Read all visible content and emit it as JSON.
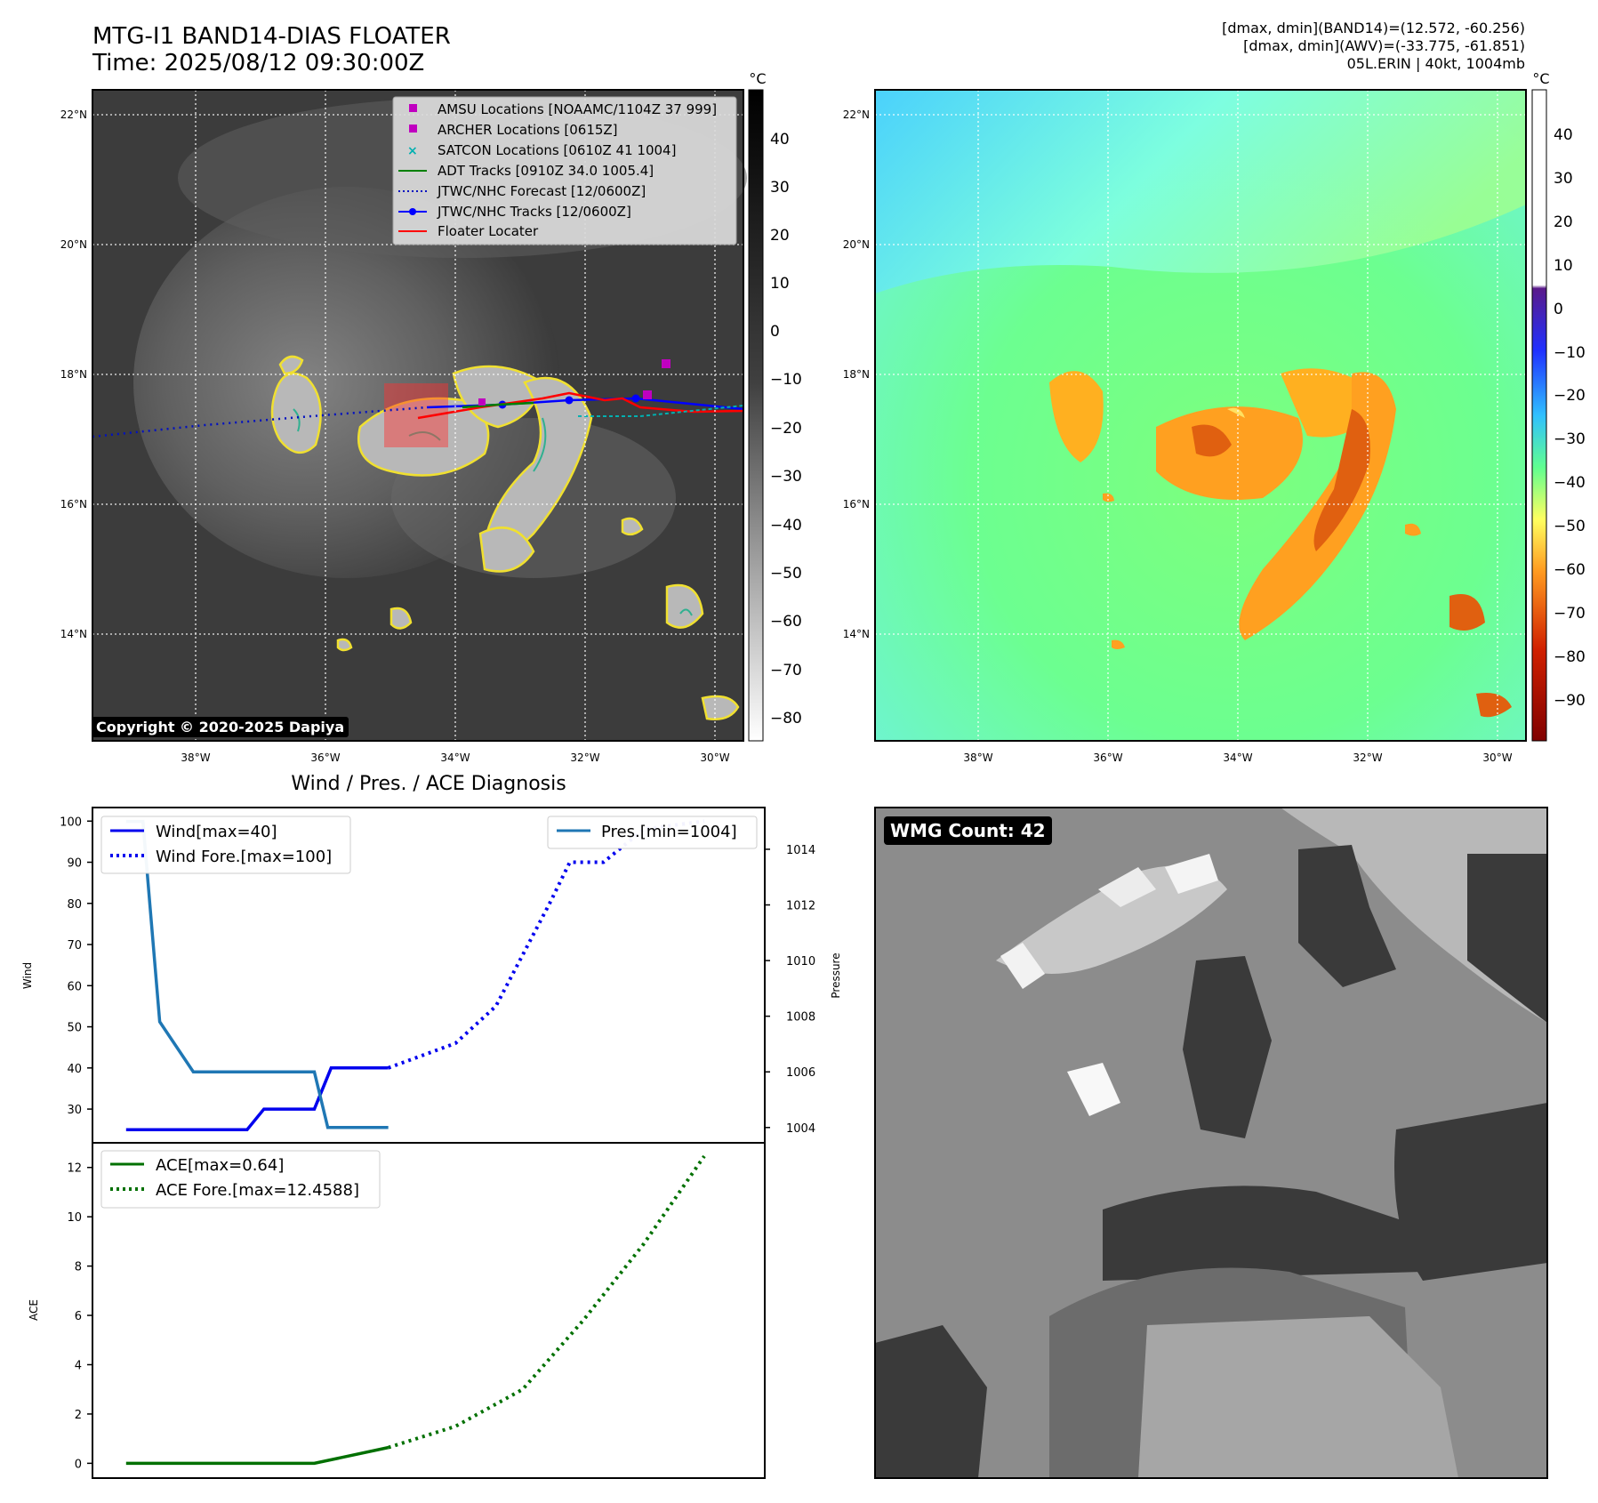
{
  "header": {
    "title_line1": "MTG-I1 BAND14-DIAS FLOATER",
    "title_line2": "Time: 2025/08/12 09:30:00Z",
    "info_line1": "[dmax, dmin](BAND14)=(12.572, -60.256)",
    "info_line2": "[dmax, dmin](AWV)=(-33.775, -61.851)",
    "info_line3": "05L.ERIN | 40kt, 1004mb"
  },
  "map": {
    "lat_labels": [
      "22°N",
      "20°N",
      "18°N",
      "16°N",
      "14°N"
    ],
    "lon_labels": [
      "38°W",
      "36°W",
      "34°W",
      "32°W",
      "30°W"
    ],
    "copyright": "Copyright © 2020-2025 Dapiya",
    "legend": [
      {
        "label": "AMSU Locations [NOAAMC/1104Z 37 999]",
        "color": "#c000c0",
        "marker": "square"
      },
      {
        "label": "ARCHER Locations [0615Z]",
        "color": "#c000c0",
        "marker": "square"
      },
      {
        "label": "SATCON Locations [0610Z 41 1004]",
        "color": "#00b0b0",
        "marker": "x"
      },
      {
        "label": "ADT Tracks [0910Z 34.0 1005.4]",
        "color": "#008000",
        "marker": "line"
      },
      {
        "label": "JTWC/NHC Forecast [12/0600Z]",
        "color": "#0000c0",
        "marker": "dotted"
      },
      {
        "label": "JTWC/NHC Tracks [12/0600Z]",
        "color": "#0000ff",
        "marker": "line-dot"
      },
      {
        "label": "Floater Locater",
        "color": "#ff0000",
        "marker": "line"
      }
    ]
  },
  "colorbar_gray": {
    "unit": "°C",
    "ticks": [
      "40",
      "30",
      "20",
      "10",
      "0",
      "−10",
      "−20",
      "−30",
      "−40",
      "−50",
      "−60",
      "−70",
      "−80"
    ]
  },
  "colorbar_color": {
    "unit": "°C",
    "ticks": [
      "40",
      "30",
      "20",
      "10",
      "0",
      "−10",
      "−20",
      "−30",
      "−40",
      "−50",
      "−60",
      "−70",
      "−80",
      "−90"
    ]
  },
  "wmg": {
    "label": "WMG Count: 42"
  },
  "chart_data": [
    {
      "type": "line",
      "title": "Wind / Pres. / ACE Diagnosis",
      "ylabel": "Wind",
      "ylabel_right": "Pressure",
      "yticks_left": [
        "100",
        "90",
        "80",
        "70",
        "60",
        "50",
        "40",
        "30"
      ],
      "yticks_right": [
        "1014",
        "1012",
        "1010",
        "1008",
        "1006",
        "1004"
      ],
      "ylim": [
        21.8,
        103.3
      ],
      "ylim_right": [
        1003.45,
        1015.5
      ],
      "xlim": [
        0,
        10
      ],
      "legend_left": [
        "Wind[max=40]",
        "Wind Fore.[max=100]"
      ],
      "legend_right": [
        "Pres.[min=1004]"
      ],
      "series": [
        {
          "name": "Wind[max=40]",
          "color": "#0000ee",
          "style": "solid",
          "x": [
            0.5,
            2.3,
            2.55,
            3.3,
            3.55,
            4.4
          ],
          "y": [
            25,
            25,
            30,
            30,
            40,
            40
          ]
        },
        {
          "name": "Wind Fore.[max=100]",
          "color": "#0000ee",
          "style": "dotted",
          "x": [
            4.4,
            5.4,
            6.0,
            6.8,
            7.1,
            7.6,
            8.2,
            9.1
          ],
          "y": [
            40,
            46,
            55,
            80,
            90,
            90,
            98,
            100
          ]
        },
        {
          "name": "Pres.[min=1004]",
          "color": "#1f77b4",
          "style": "solid",
          "axis": "right",
          "x": [
            0.5,
            0.75,
            1.0,
            1.5,
            2.5,
            3.3,
            3.5,
            4.4
          ],
          "y": [
            1015,
            1015,
            1007.8,
            1006,
            1006,
            1006,
            1004,
            1004
          ]
        }
      ]
    },
    {
      "type": "line",
      "ylabel": "ACE",
      "yticks_left": [
        "12",
        "10",
        "8",
        "6",
        "4",
        "2",
        "0"
      ],
      "ylim": [
        -0.6,
        13.0
      ],
      "xlim": [
        0,
        10
      ],
      "legend_left": [
        "ACE[max=0.64]",
        "ACE Fore.[max=12.4588]"
      ],
      "series": [
        {
          "name": "ACE[max=0.64]",
          "color": "#007000",
          "style": "solid",
          "x": [
            0.5,
            3.3,
            4.4
          ],
          "y": [
            0,
            0,
            0.64
          ]
        },
        {
          "name": "ACE Fore.[max=12.4588]",
          "color": "#007000",
          "style": "dotted",
          "x": [
            4.4,
            5.4,
            6.4,
            7.3,
            8.2,
            9.1
          ],
          "y": [
            0.64,
            1.5,
            3.0,
            5.8,
            8.9,
            12.4588
          ]
        }
      ]
    }
  ]
}
